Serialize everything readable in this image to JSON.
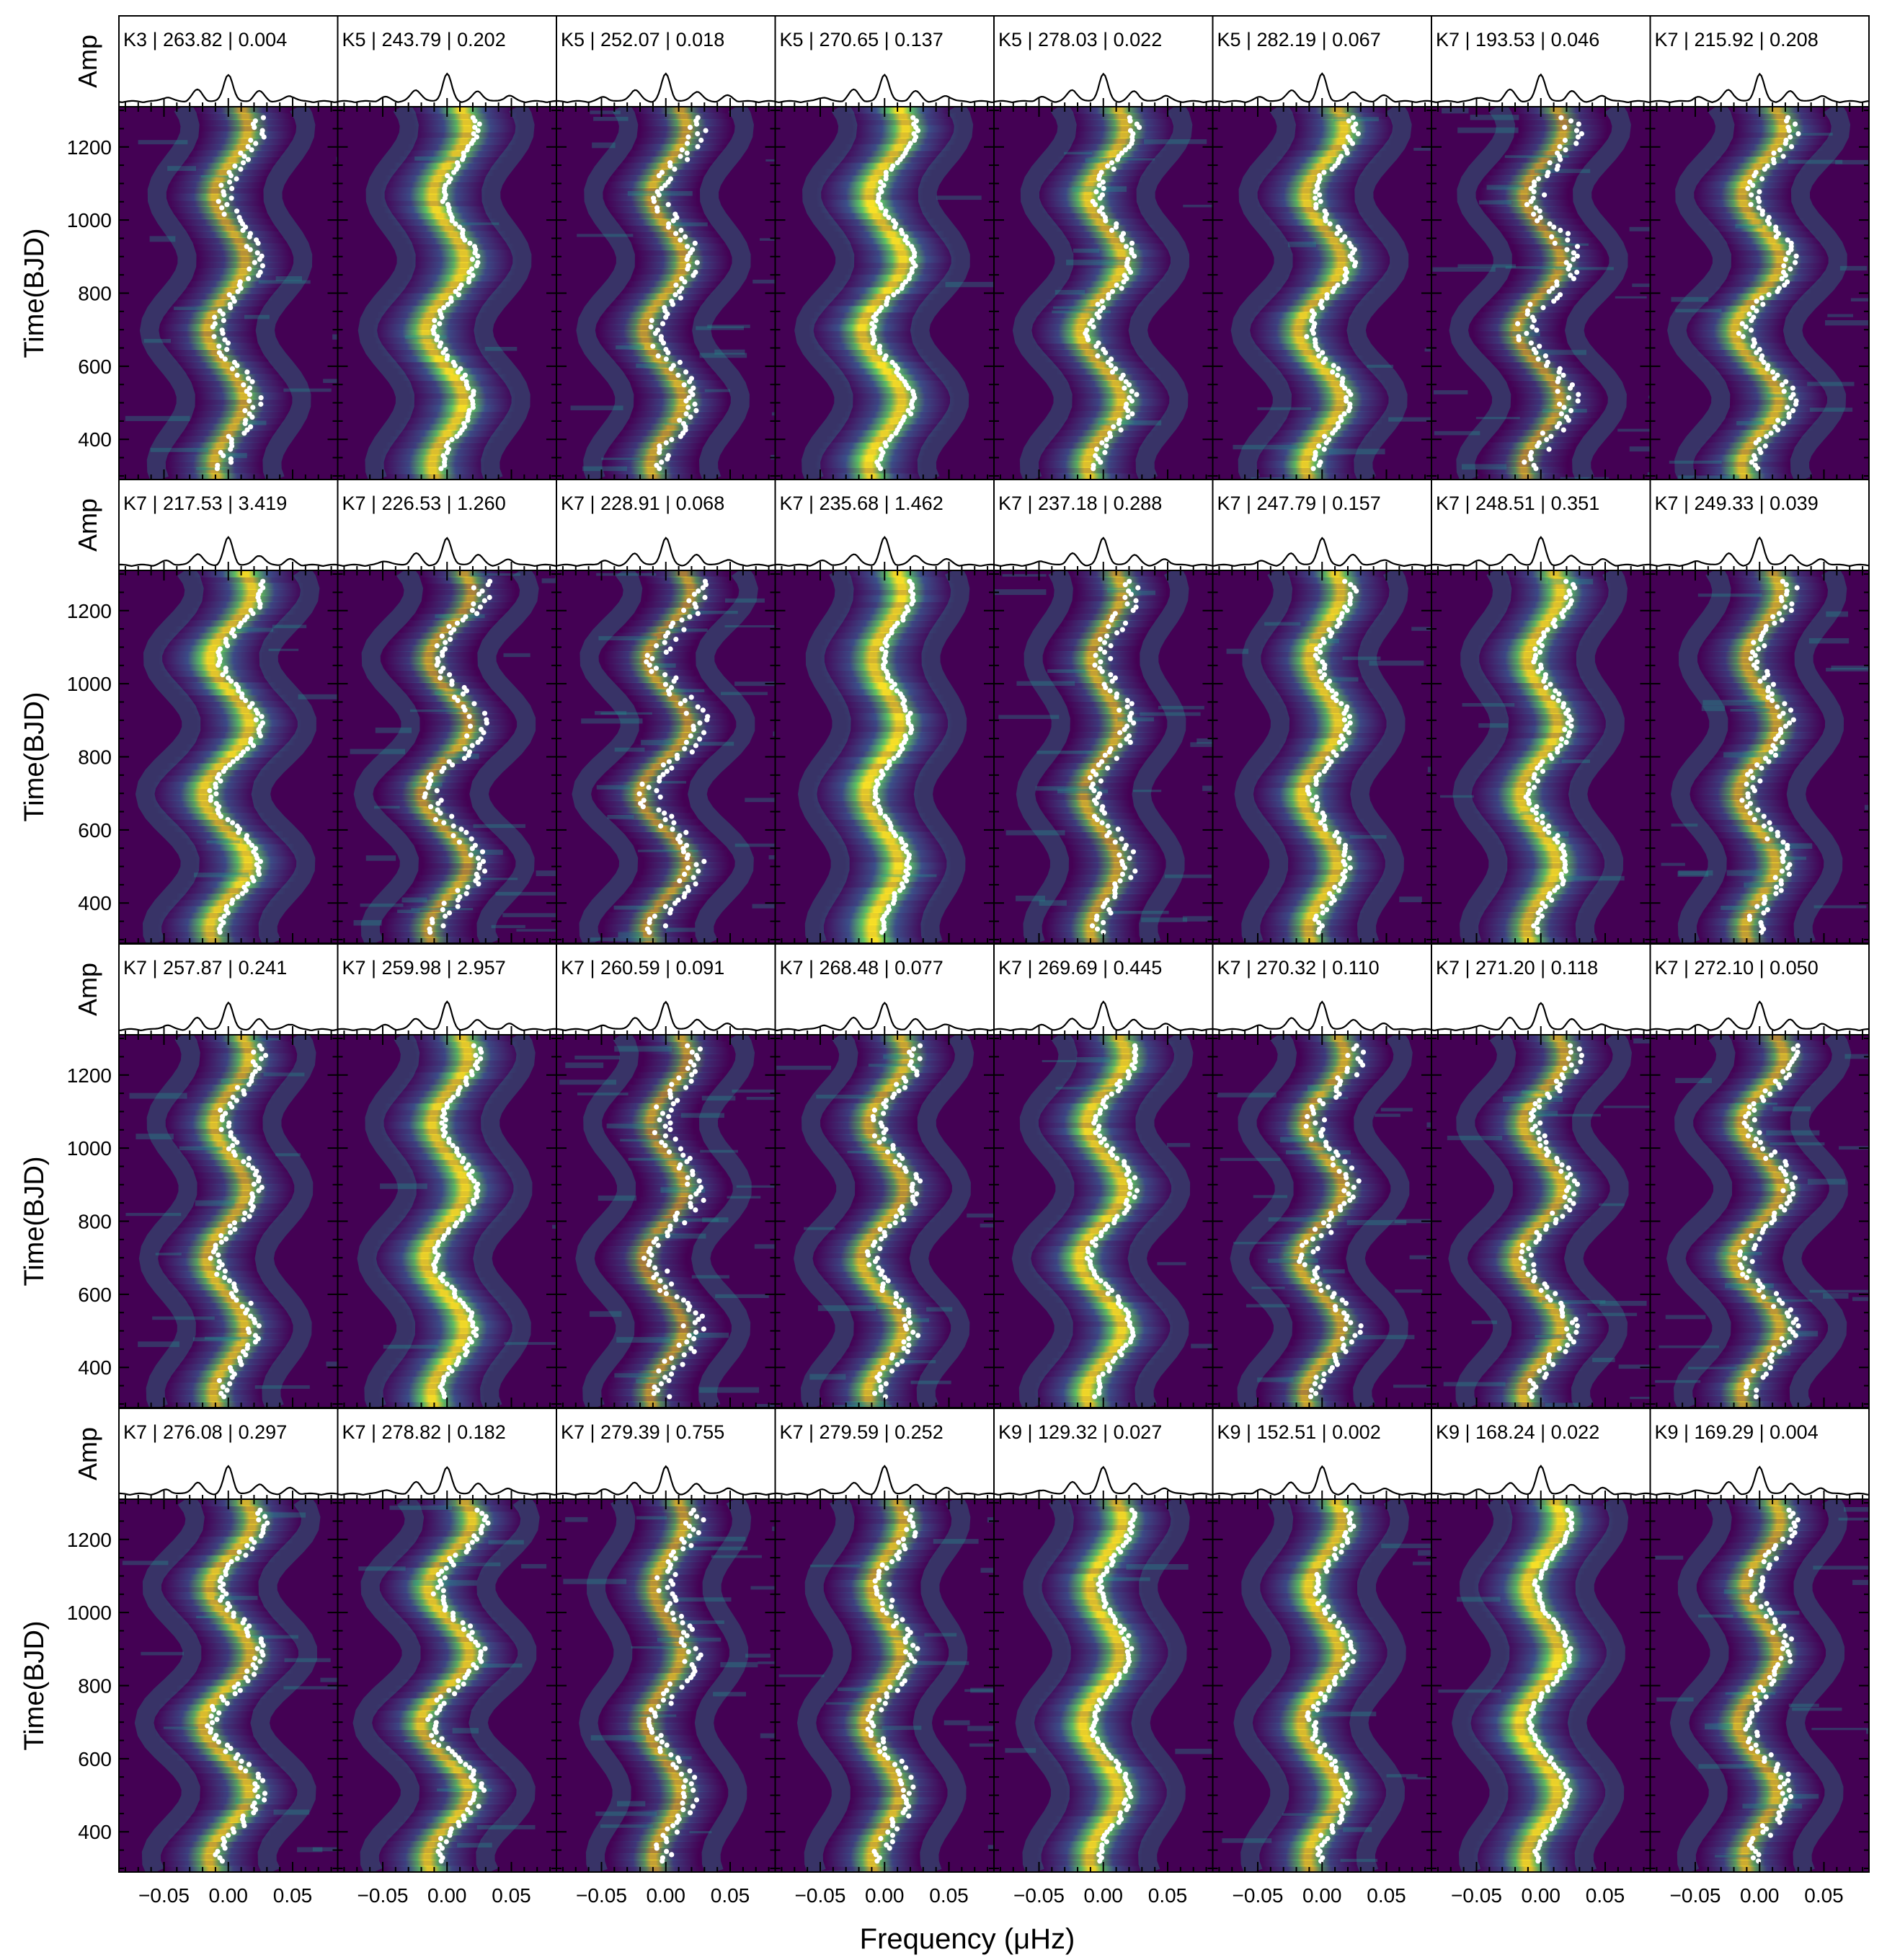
{
  "figure": {
    "xlabel": "Frequency (μHz)",
    "amp_label": "Amp",
    "time_label": "Time(BJD)",
    "x_ticks": [
      "−0.05",
      "0.00",
      "0.05"
    ],
    "y_ticks": [
      "400",
      "600",
      "800",
      "1000",
      "1200"
    ]
  },
  "chart_data": {
    "type": "heatmap",
    "description_axes": {
      "xlim": [
        -0.085,
        0.085
      ],
      "ylim": [
        290,
        1310
      ],
      "x_tick_values": [
        -0.05,
        0.0,
        0.05
      ],
      "y_tick_values": [
        400,
        600,
        800,
        1000,
        1200
      ]
    },
    "colormap": [
      "#440154",
      "#3b528b",
      "#21918c",
      "#5ec962",
      "#fde725"
    ],
    "trace_color": "#ffffff",
    "panels": [
      {
        "label": "K3 | 263.82 | 0.004",
        "quality": 0.55
      },
      {
        "label": "K5 | 243.79 | 0.202",
        "quality": 0.9
      },
      {
        "label": "K5 | 252.07 | 0.018",
        "quality": 0.45
      },
      {
        "label": "K5 | 270.65 | 0.137",
        "quality": 0.95
      },
      {
        "label": "K5 | 278.03 | 0.022",
        "quality": 0.7
      },
      {
        "label": "K5 | 282.19 | 0.067",
        "quality": 0.75
      },
      {
        "label": "K7 | 193.53 | 0.046",
        "quality": 0.3
      },
      {
        "label": "K7 | 215.92 | 0.208",
        "quality": 0.6
      },
      {
        "label": "K7 | 217.53 | 3.419",
        "quality": 0.85
      },
      {
        "label": "K7 | 226.53 | 1.260",
        "quality": 0.35
      },
      {
        "label": "K7 | 228.91 | 0.068",
        "quality": 0.25
      },
      {
        "label": "K7 | 235.68 | 1.462",
        "quality": 0.95
      },
      {
        "label": "K7 | 237.18 | 0.288",
        "quality": 0.4
      },
      {
        "label": "K7 | 247.79 | 0.157",
        "quality": 0.75
      },
      {
        "label": "K7 | 248.51 | 0.351",
        "quality": 0.8
      },
      {
        "label": "K7 | 249.33 | 0.039",
        "quality": 0.5
      },
      {
        "label": "K7 | 257.87 | 0.241",
        "quality": 0.6
      },
      {
        "label": "K7 | 259.98 | 2.957",
        "quality": 0.9
      },
      {
        "label": "K7 | 260.59 | 0.091",
        "quality": 0.25
      },
      {
        "label": "K7 | 268.48 | 0.077",
        "quality": 0.55
      },
      {
        "label": "K7 | 269.69 | 0.445",
        "quality": 0.85
      },
      {
        "label": "K7 | 270.32 | 0.110",
        "quality": 0.4
      },
      {
        "label": "K7 | 271.20 | 0.118",
        "quality": 0.55
      },
      {
        "label": "K7 | 272.10 | 0.050",
        "quality": 0.5
      },
      {
        "label": "K7 | 276.08 | 0.297",
        "quality": 0.65
      },
      {
        "label": "K7 | 278.82 | 0.182",
        "quality": 0.7
      },
      {
        "label": "K7 | 279.39 | 0.755",
        "quality": 0.4
      },
      {
        "label": "K7 | 279.59 | 0.252",
        "quality": 0.55
      },
      {
        "label": "K9 | 129.32 | 0.027",
        "quality": 0.9
      },
      {
        "label": "K9 | 152.51 | 0.002",
        "quality": 0.75
      },
      {
        "label": "K9 | 168.24 | 0.022",
        "quality": 0.95
      },
      {
        "label": "K9 | 169.29 | 0.004",
        "quality": 0.5
      }
    ]
  }
}
